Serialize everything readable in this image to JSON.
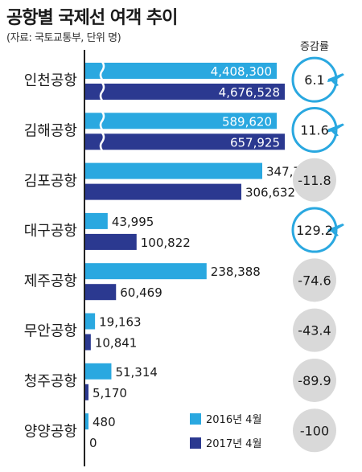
{
  "title": "공항별 국제선 여객 추이",
  "source": "(자료: 국토교통부, 단위 명)",
  "colors": {
    "2016": "#2aa8e0",
    "2017": "#2b3990",
    "increase_ring": "#2aa8e0",
    "decrease_circle": "#d9d9d9",
    "axis": "#222222"
  },
  "chart_data": {
    "type": "bar",
    "orientation": "horizontal",
    "categories": [
      "인천공항",
      "김해공항",
      "김포공항",
      "대구공항",
      "제주공항",
      "무안공항",
      "청주공항",
      "양양공항"
    ],
    "series": [
      {
        "name": "2016년 4월",
        "values": [
          4408300,
          589620,
          347779,
          43995,
          238388,
          19163,
          51314,
          480
        ]
      },
      {
        "name": "2017년 4월",
        "values": [
          4676528,
          657925,
          306632,
          100822,
          60469,
          10841,
          5170,
          0
        ]
      }
    ],
    "value_labels": {
      "2016": [
        "4,408,300",
        "589,620",
        "347,779",
        "43,995",
        "238,388",
        "19,163",
        "51,314",
        "480"
      ],
      "2017": [
        "4,676,528",
        "657,925",
        "306,632",
        "100,822",
        "60,469",
        "10,841",
        "5,170",
        "0"
      ]
    },
    "axis_break": [
      true,
      true,
      false,
      false,
      false,
      false,
      false,
      false
    ],
    "change_header": "증감률",
    "change": [
      "6.1",
      "11.6",
      "-11.8",
      "129.2",
      "-74.6",
      "-43.4",
      "-89.9",
      "-100"
    ],
    "change_trend": [
      "up",
      "up",
      "down",
      "up",
      "down",
      "down",
      "down",
      "down"
    ],
    "legend": [
      "2016년 4월",
      "2017년 4월"
    ],
    "legend_position": "bottom-right"
  }
}
